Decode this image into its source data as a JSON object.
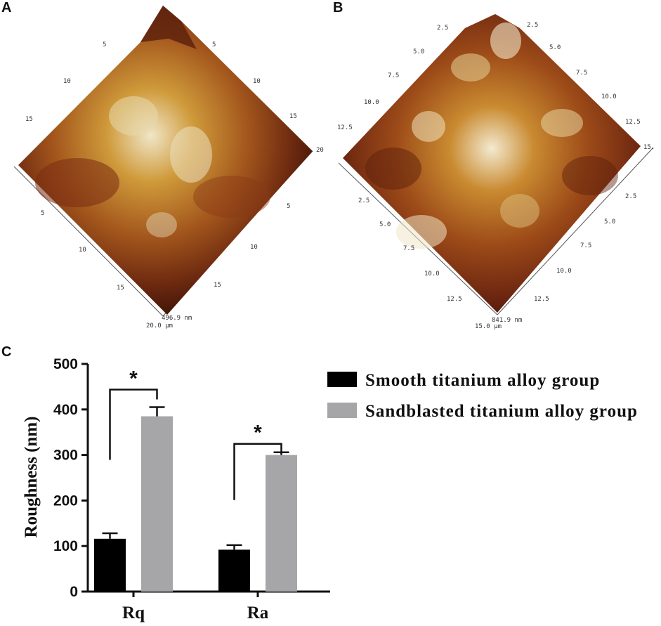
{
  "panels": {
    "a": {
      "label": "A",
      "ticks_left_top": [
        "5",
        "10",
        "15"
      ],
      "ticks_right_top": [
        "5",
        "10",
        "15",
        "20"
      ],
      "ticks_left_bottom": [
        "5",
        "10",
        "15"
      ],
      "ticks_right_bottom": [
        "5",
        "10",
        "15"
      ],
      "z_readout": "496.9 nm",
      "corner_readout": "20.0 μm",
      "surface_colors": [
        "#3a1206",
        "#6e2a10",
        "#a3561c",
        "#cf9a3a",
        "#f0e6c8"
      ]
    },
    "b": {
      "label": "B",
      "ticks_left_top": [
        "2.5",
        "5.0",
        "7.5",
        "10.0",
        "12.5"
      ],
      "ticks_right_top": [
        "2.5",
        "5.0",
        "7.5",
        "10.0",
        "12.5",
        "15."
      ],
      "ticks_left_bottom": [
        "2.5",
        "5.0",
        "7.5",
        "10.0",
        "12.5"
      ],
      "ticks_right_bottom": [
        "2.5",
        "5.0",
        "7.5",
        "10.0",
        "12.5"
      ],
      "z_readout": "841.9 nm",
      "corner_readout": "15.0 μm",
      "surface_colors": [
        "#2e0c04",
        "#6a2410",
        "#9c4a18",
        "#c98a30",
        "#f3ead0"
      ]
    },
    "c": {
      "label": "C"
    }
  },
  "chart_data": {
    "type": "bar",
    "categories": [
      "Rq",
      "Ra"
    ],
    "series": [
      {
        "name": "Smooth titanium alloy group",
        "color": "#000000",
        "values": [
          116,
          92
        ],
        "errors": [
          12,
          10
        ]
      },
      {
        "name": "Sandblasted titanium alloy group",
        "color": "#a6a6a8",
        "values": [
          385,
          300
        ],
        "errors": [
          20,
          6
        ]
      }
    ],
    "title": "",
    "xlabel": "",
    "ylabel": "Roughness (nm)",
    "ylim": [
      0,
      500
    ],
    "yticks": [
      0,
      100,
      200,
      300,
      400,
      500
    ],
    "significance": [
      {
        "category": "Rq",
        "label": "*"
      },
      {
        "category": "Ra",
        "label": "*"
      }
    ],
    "legend_position": "top-right",
    "grid": false
  }
}
